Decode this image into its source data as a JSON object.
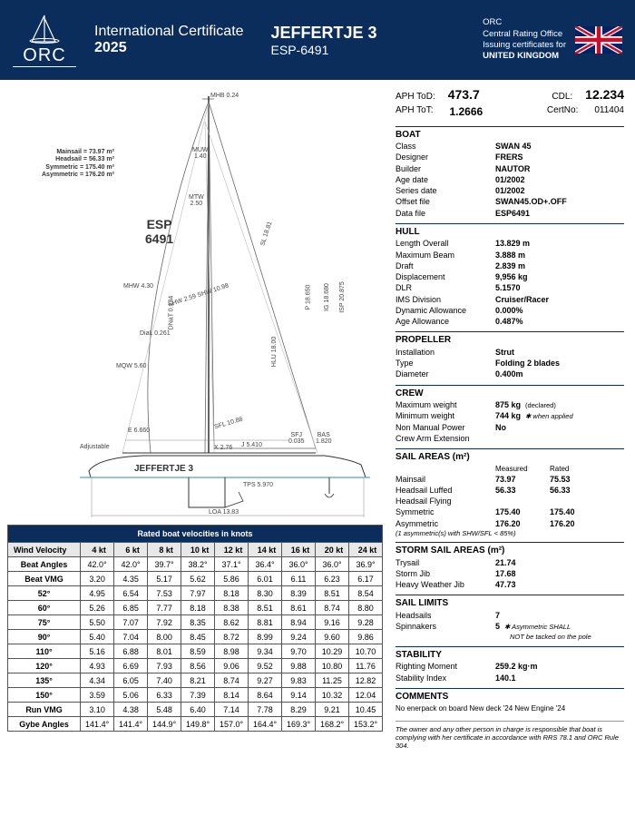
{
  "header": {
    "orc": "ORC",
    "cert_line1": "International Certificate",
    "cert_line2": "2025",
    "boat_name": "JEFFERTJE 3",
    "sail_no": "ESP-6491",
    "issuer1": "ORC",
    "issuer2": "Central Rating Office",
    "issuer3": "Issuing certificates for",
    "issuer_country": "UNITED KINGDOM"
  },
  "ratings": {
    "aph_tod_lbl": "APH ToD:",
    "aph_tod": "473.7",
    "cdl_lbl": "CDL:",
    "cdl": "12.234",
    "aph_tot_lbl": "APH ToT:",
    "aph_tot": "1.2666",
    "certno_lbl": "CertNo:",
    "certno": "011404"
  },
  "boat": {
    "hdr": "BOAT",
    "class_k": "Class",
    "class_v": "SWAN 45",
    "designer_k": "Designer",
    "designer_v": "FRERS",
    "builder_k": "Builder",
    "builder_v": "NAUTOR",
    "agedate_k": "Age date",
    "agedate_v": "01/2002",
    "seriesdate_k": "Series date",
    "seriesdate_v": "01/2002",
    "offset_k": "Offset file",
    "offset_v": "SWAN45.OD+.OFF",
    "data_k": "Data file",
    "data_v": "ESP6491"
  },
  "hull": {
    "hdr": "HULL",
    "loa_k": "Length Overall",
    "loa_v": "13.829 m",
    "beam_k": "Maximum Beam",
    "beam_v": "3.888 m",
    "draft_k": "Draft",
    "draft_v": "2.839 m",
    "disp_k": "Displacement",
    "disp_v": "9,956 kg",
    "dlr_k": "DLR",
    "dlr_v": "5.1570",
    "ims_k": "IMS Division",
    "ims_v": "Cruiser/Racer",
    "dyn_k": "Dynamic Allowance",
    "dyn_v": "0.000%",
    "age_k": "Age Allowance",
    "age_v": "0.487%"
  },
  "prop": {
    "hdr": "PROPELLER",
    "inst_k": "Installation",
    "inst_v": "Strut",
    "type_k": "Type",
    "type_v": "Folding 2 blades",
    "dia_k": "Diameter",
    "dia_v": "0.400m"
  },
  "crew": {
    "hdr": "CREW",
    "maxw_k": "Maximum weight",
    "maxw_v": "875 kg",
    "maxw_n": "(declared)",
    "minw_k": "Minimum weight",
    "minw_v": "744 kg",
    "minw_n": "✱ when applied",
    "nmp_k": "Non Manual Power",
    "nmp_v": "No",
    "cae_k": "Crew Arm Extension",
    "cae_v": ""
  },
  "sails": {
    "hdr": "SAIL AREAS (m²)",
    "col_m": "Measured",
    "col_r": "Rated",
    "main_k": "Mainsail",
    "main_m": "73.97",
    "main_r": "75.53",
    "hsl_k": "Headsail Luffed",
    "hsl_m": "56.33",
    "hsl_r": "56.33",
    "hsf_k": "Headsail Flying",
    "hsf_m": "",
    "hsf_r": "",
    "sym_k": "Symmetric",
    "sym_m": "175.40",
    "sym_r": "175.40",
    "asy_k": "Asymmetric",
    "asy_m": "176.20",
    "asy_r": "176.20",
    "note": "(1 asymmetric(s) with SHW/SFL < 85%)"
  },
  "storm": {
    "hdr": "STORM SAIL AREAS (m²)",
    "try_k": "Trysail",
    "try_v": "21.74",
    "sj_k": "Storm Jib",
    "sj_v": "17.68",
    "hwj_k": "Heavy Weather Jib",
    "hwj_v": "47.73"
  },
  "limits": {
    "hdr": "SAIL LIMITS",
    "hs_k": "Headsails",
    "hs_v": "7",
    "sp_k": "Spinnakers",
    "sp_v": "5",
    "sp_n1": "✱ Asymmetric SHALL",
    "sp_n2": "NOT be tacked on the pole"
  },
  "stability": {
    "hdr": "STABILITY",
    "rm_k": "Righting Moment",
    "rm_v": "259.2 kg·m",
    "si_k": "Stability Index",
    "si_v": "140.1"
  },
  "comments": {
    "hdr": "COMMENTS",
    "text": "No enerpack on board New deck '24 New Engine '24"
  },
  "footer": "The owner and any other person in charge is responsible that boat is complying with her certificate in accordance with RRS 78.1 and ORC Rule 304.",
  "table": {
    "title": "Rated boat velocities in knots",
    "wind_hdr": "Wind Velocity",
    "cols": [
      "4 kt",
      "6 kt",
      "8 kt",
      "10 kt",
      "12 kt",
      "14 kt",
      "16 kt",
      "20 kt",
      "24 kt"
    ],
    "rows": [
      {
        "h": "Beat Angles",
        "v": [
          "42.0°",
          "42.0°",
          "39.7°",
          "38.2°",
          "37.1°",
          "36.4°",
          "36.0°",
          "36.0°",
          "36.9°"
        ]
      },
      {
        "h": "Beat VMG",
        "v": [
          "3.20",
          "4.35",
          "5.17",
          "5.62",
          "5.86",
          "6.01",
          "6.11",
          "6.23",
          "6.17"
        ]
      },
      {
        "h": "52°",
        "v": [
          "4.95",
          "6.54",
          "7.53",
          "7.97",
          "8.18",
          "8.30",
          "8.39",
          "8.51",
          "8.54"
        ]
      },
      {
        "h": "60°",
        "v": [
          "5.26",
          "6.85",
          "7.77",
          "8.18",
          "8.38",
          "8.51",
          "8.61",
          "8.74",
          "8.80"
        ]
      },
      {
        "h": "75°",
        "v": [
          "5.50",
          "7.07",
          "7.92",
          "8.35",
          "8.62",
          "8.81",
          "8.94",
          "9.16",
          "9.28"
        ]
      },
      {
        "h": "90°",
        "v": [
          "5.40",
          "7.04",
          "8.00",
          "8.45",
          "8.72",
          "8.99",
          "9.24",
          "9.60",
          "9.86"
        ]
      },
      {
        "h": "110°",
        "v": [
          "5.16",
          "6.88",
          "8.01",
          "8.59",
          "8.98",
          "9.34",
          "9.70",
          "10.29",
          "10.70"
        ]
      },
      {
        "h": "120°",
        "v": [
          "4.93",
          "6.69",
          "7.93",
          "8.56",
          "9.06",
          "9.52",
          "9.88",
          "10.80",
          "11.76"
        ]
      },
      {
        "h": "135°",
        "v": [
          "4.34",
          "6.05",
          "7.40",
          "8.21",
          "8.74",
          "9.27",
          "9.83",
          "11.25",
          "12.82"
        ]
      },
      {
        "h": "150°",
        "v": [
          "3.59",
          "5.06",
          "6.33",
          "7.39",
          "8.14",
          "8.64",
          "9.14",
          "10.32",
          "12.04"
        ]
      },
      {
        "h": "Run VMG",
        "v": [
          "3.10",
          "4.38",
          "5.48",
          "6.40",
          "7.14",
          "7.78",
          "8.29",
          "9.21",
          "10.45"
        ]
      },
      {
        "h": "Gybe Angles",
        "v": [
          "141.4°",
          "141.4°",
          "144.9°",
          "149.8°",
          "157.0°",
          "164.4°",
          "169.3°",
          "168.2°",
          "153.2°"
        ]
      }
    ]
  },
  "sailplan": {
    "sailno1": "ESP",
    "sailno2": "6491",
    "boat_label": "JEFFERTJE 3",
    "areas1": "Mainsail = 73.97 m²",
    "areas2": "Headsail = 56.33 m²",
    "areas3": "Symmetric = 175.40 m²",
    "areas4": "Asymmetric = 176.20 m²",
    "mhb": "MHB 0.24",
    "muw": "MUW\n1.40",
    "mtw": "MTW\n2.50",
    "mhw": "MHW 4.30",
    "mqw": "MQW 5.60",
    "e": "E 6.660",
    "j": "J 5.410",
    "sfj": "SFJ\n0.035",
    "bas": "BAS\n1.820",
    "tps": "TPS 5.970",
    "loa": "LOA 13.83",
    "adjustable": "Adjustable",
    "dial": "DiaL 0.261",
    "sfl": "SFL 10.88",
    "dnat": "DNaT 0.134",
    "shw": "SHW 2.59 SHW 10.98",
    "sl": "SL 18.81",
    "p": "P 18.650",
    "ig": "IG 18.680",
    "isp": "ISP 20.875",
    "hlu": "HLU 18.00",
    "x2": "X 2.76"
  }
}
